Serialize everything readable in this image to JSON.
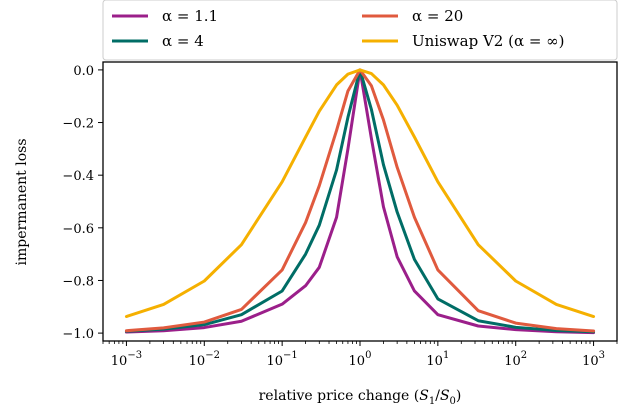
{
  "chart_data": {
    "type": "line",
    "xscale": "log",
    "xlim": [
      0.0005,
      2000
    ],
    "ylim": [
      -1.03,
      0.03
    ],
    "xlabel": "relative price change (S1/S0)",
    "ylabel": "impermanent loss",
    "x_ticks": [
      {
        "value": 0.001,
        "mantissa": "10",
        "exponent": "−3"
      },
      {
        "value": 0.01,
        "mantissa": "10",
        "exponent": "−2"
      },
      {
        "value": 0.1,
        "mantissa": "10",
        "exponent": "−1"
      },
      {
        "value": 1,
        "mantissa": "10",
        "exponent": "0"
      },
      {
        "value": 10,
        "mantissa": "10",
        "exponent": "1"
      },
      {
        "value": 100,
        "mantissa": "10",
        "exponent": "2"
      },
      {
        "value": 1000,
        "mantissa": "10",
        "exponent": "3"
      }
    ],
    "y_ticks": [
      {
        "value": 0.0,
        "label": "0.0"
      },
      {
        "value": -0.2,
        "label": "−0.2"
      },
      {
        "value": -0.4,
        "label": "−0.4"
      },
      {
        "value": -0.6,
        "label": "−0.6"
      },
      {
        "value": -0.8,
        "label": "−0.8"
      },
      {
        "value": -1.0,
        "label": "−1.0"
      }
    ],
    "grid": false,
    "legend_position": "top (above plot), two columns",
    "x": [
      0.001,
      0.003,
      0.01,
      0.03,
      0.1,
      0.2,
      0.3,
      0.5,
      0.7,
      1,
      1.4,
      2,
      3,
      5,
      10,
      33,
      100,
      333,
      1000
    ],
    "series": [
      {
        "name": "α =  1.1",
        "color": "#9b1f8a",
        "values": [
          -0.996,
          -0.991,
          -0.979,
          -0.955,
          -0.89,
          -0.82,
          -0.75,
          -0.56,
          -0.3,
          0.0,
          -0.26,
          -0.52,
          -0.71,
          -0.84,
          -0.93,
          -0.973,
          -0.987,
          -0.995,
          -0.998
        ]
      },
      {
        "name": "α =  4",
        "color": "#006d66",
        "values": [
          -0.993,
          -0.985,
          -0.968,
          -0.93,
          -0.84,
          -0.7,
          -0.59,
          -0.38,
          -0.18,
          0.0,
          -0.15,
          -0.36,
          -0.54,
          -0.72,
          -0.87,
          -0.953,
          -0.978,
          -0.99,
          -0.995
        ]
      },
      {
        "name": "α =  20",
        "color": "#e05a3e",
        "values": [
          -0.991,
          -0.98,
          -0.958,
          -0.91,
          -0.76,
          -0.58,
          -0.44,
          -0.23,
          -0.08,
          0.0,
          -0.06,
          -0.19,
          -0.37,
          -0.56,
          -0.76,
          -0.915,
          -0.962,
          -0.983,
          -0.992
        ]
      },
      {
        "name": "Uniswap V2 (α = ∞)",
        "color": "#f5b000",
        "values": [
          -0.937,
          -0.891,
          -0.802,
          -0.664,
          -0.425,
          -0.255,
          -0.157,
          -0.057,
          -0.016,
          0.0,
          -0.014,
          -0.057,
          -0.134,
          -0.255,
          -0.425,
          -0.664,
          -0.802,
          -0.891,
          -0.937
        ]
      }
    ]
  }
}
